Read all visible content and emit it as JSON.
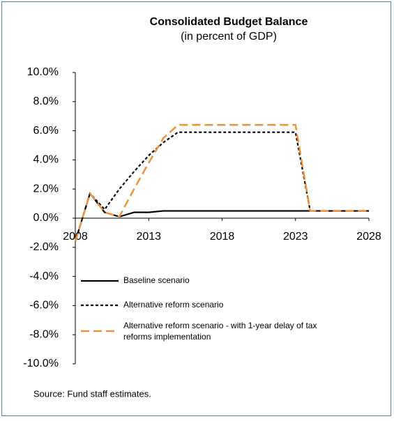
{
  "chart_data": {
    "type": "line",
    "title": "Consolidated Budget Balance",
    "subtitle": "(in percent of GDP)",
    "source": "Source: Fund staff estimates.",
    "x": [
      2008,
      2009,
      2010,
      2011,
      2012,
      2013,
      2014,
      2015,
      2016,
      2017,
      2018,
      2019,
      2020,
      2021,
      2022,
      2023,
      2024,
      2025,
      2026,
      2027,
      2028
    ],
    "xlim": [
      2008,
      2028
    ],
    "xticks": [
      2008,
      2013,
      2018,
      2023,
      2028
    ],
    "ylim": [
      -10,
      10
    ],
    "yticks": [
      {
        "value": 10,
        "label": "10.0%"
      },
      {
        "value": 8,
        "label": "8.0%"
      },
      {
        "value": 6,
        "label": "6.0%"
      },
      {
        "value": 4,
        "label": "4.0%"
      },
      {
        "value": 2,
        "label": "2.0%"
      },
      {
        "value": 0,
        "label": "0.0%"
      },
      {
        "value": -2,
        "label": "-2.0%"
      },
      {
        "value": -4,
        "label": "-4.0%"
      },
      {
        "value": -6,
        "label": "-6.0%"
      },
      {
        "value": -8,
        "label": "-8.0%"
      },
      {
        "value": -10,
        "label": "-10.0%"
      }
    ],
    "grid": false,
    "series": [
      {
        "name": "Baseline scenario",
        "color": "#000000",
        "dash": "none",
        "values": [
          -1.6,
          1.7,
          0.4,
          0.1,
          0.4,
          0.4,
          0.5,
          0.5,
          0.5,
          0.5,
          0.5,
          0.5,
          0.5,
          0.5,
          0.5,
          0.5,
          0.5,
          0.5,
          0.5,
          0.5,
          0.5
        ]
      },
      {
        "name": "Alternative reform scenario",
        "color": "#000000",
        "dash": "4 3",
        "values": [
          -1.6,
          1.7,
          0.6,
          2.0,
          3.2,
          4.3,
          5.2,
          5.9,
          5.9,
          5.9,
          5.9,
          5.9,
          5.9,
          5.9,
          5.9,
          5.9,
          0.5,
          0.5,
          0.5,
          0.5,
          0.5
        ]
      },
      {
        "name": "Alternative reform scenario - with 1-year delay of tax reforms implementation",
        "color": "#f0913a",
        "dash": "12 6",
        "values": [
          -1.6,
          1.7,
          0.4,
          0.1,
          2.0,
          3.8,
          5.5,
          6.4,
          6.4,
          6.4,
          6.4,
          6.4,
          6.4,
          6.4,
          6.4,
          6.4,
          0.5,
          0.5,
          0.5,
          0.5,
          0.5
        ]
      }
    ]
  }
}
